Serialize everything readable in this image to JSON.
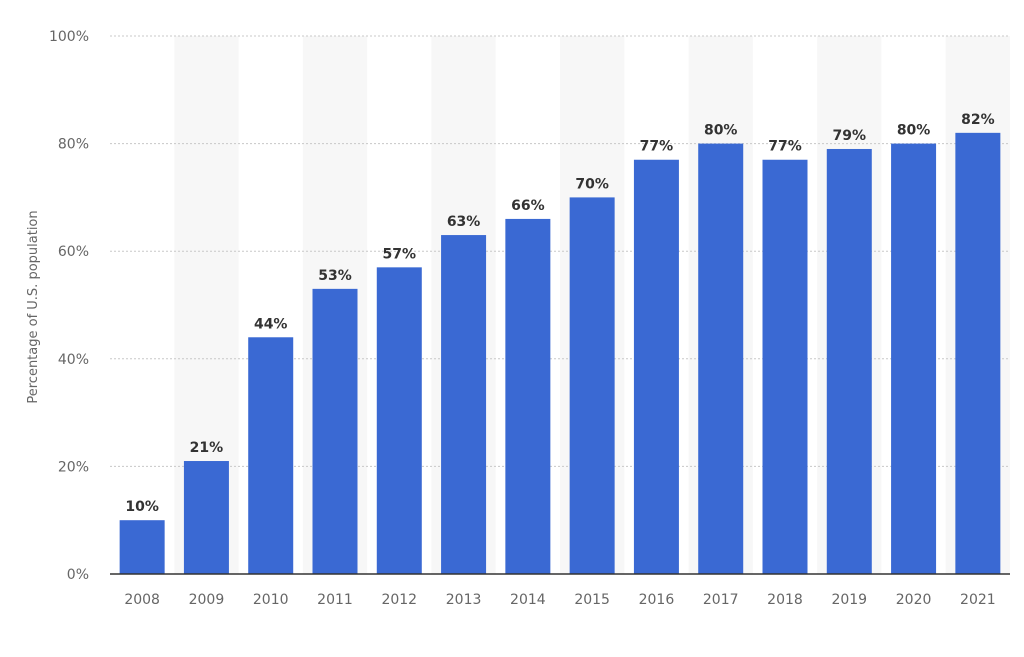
{
  "chart_data": {
    "type": "bar",
    "title": "",
    "xlabel": "",
    "ylabel": "Percentage of U.S. population",
    "categories": [
      "2008",
      "2009",
      "2010",
      "2011",
      "2012",
      "2013",
      "2014",
      "2015",
      "2016",
      "2017",
      "2018",
      "2019",
      "2020",
      "2021"
    ],
    "values": [
      10,
      21,
      44,
      53,
      57,
      63,
      66,
      70,
      77,
      80,
      77,
      79,
      80,
      82
    ],
    "value_labels": [
      "10%",
      "21%",
      "44%",
      "53%",
      "57%",
      "63%",
      "66%",
      "70%",
      "77%",
      "80%",
      "77%",
      "79%",
      "80%",
      "82%"
    ],
    "ylim": [
      0,
      100
    ],
    "y_ticks": [
      0,
      20,
      40,
      60,
      80,
      100
    ],
    "y_tick_labels": [
      "0%",
      "20%",
      "40%",
      "60%",
      "80%",
      "100%"
    ],
    "grid": true,
    "legend": "none",
    "colors": {
      "bar": "#3a69d3",
      "alt_band": "#f7f7f7",
      "grid": "#c8c8c8",
      "axis": "#333333"
    }
  }
}
